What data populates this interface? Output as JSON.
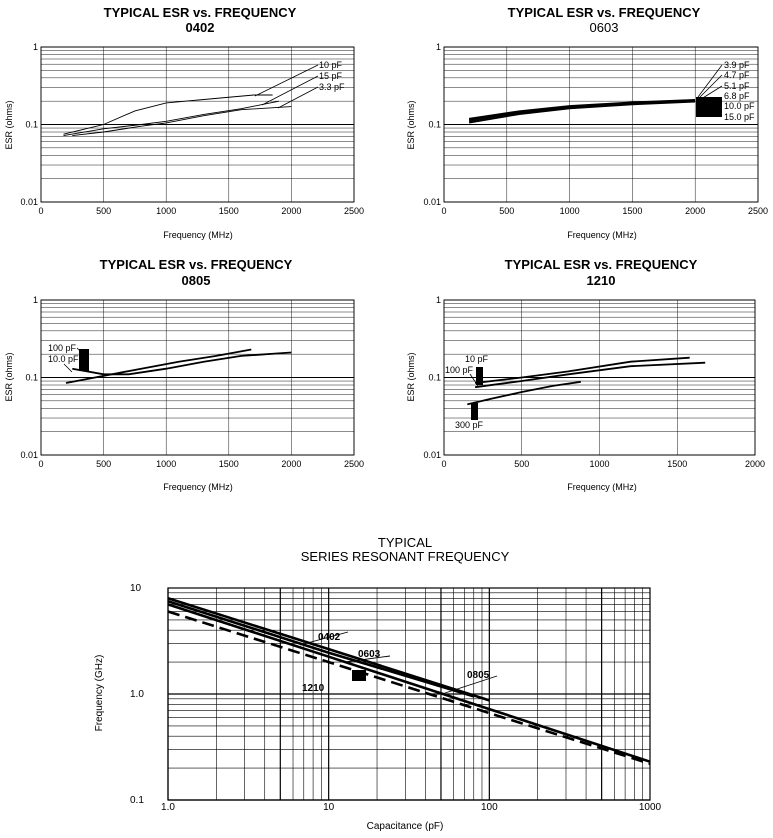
{
  "chart_data": [
    {
      "type": "line",
      "title": "TYPICAL ESR vs. FREQUENCY",
      "subtitle": "0402",
      "xlabel": "Frequency (MHz)",
      "ylabel": "ESR (ohms)",
      "xlim": [
        0,
        2500
      ],
      "ylim": [
        0.01,
        1
      ],
      "y_scale": "log",
      "x_ticks": [
        "0",
        "500",
        "1000",
        "1500",
        "2000",
        "2500"
      ],
      "y_ticks": [
        "1",
        "0.1",
        "0.01"
      ],
      "series": [
        {
          "name": "10 pF",
          "x": [
            180,
            500,
            750,
            1000,
            1300,
            1700,
            1850
          ],
          "y": [
            0.075,
            0.1,
            0.15,
            0.19,
            0.21,
            0.24,
            0.24
          ]
        },
        {
          "name": "15 pF",
          "x": [
            180,
            500,
            800,
            1000,
            1300,
            1600,
            1900
          ],
          "y": [
            0.072,
            0.088,
            0.1,
            0.11,
            0.135,
            0.16,
            0.2
          ]
        },
        {
          "name": "3.3 pF",
          "x": [
            250,
            500,
            800,
            1000,
            1300,
            1600,
            2000
          ],
          "y": [
            0.072,
            0.08,
            0.095,
            0.105,
            0.13,
            0.155,
            0.17
          ]
        }
      ],
      "annotations": [
        "10 pF",
        "15 pF",
        "3.3 pF"
      ]
    },
    {
      "type": "line",
      "title": "TYPICAL ESR vs. FREQUENCY",
      "subtitle": "0603",
      "xlabel": "Frequency (MHz)",
      "ylabel": "ESR (ohms)",
      "xlim": [
        0,
        2500
      ],
      "ylim": [
        0.01,
        1
      ],
      "y_scale": "log",
      "x_ticks": [
        "0",
        "500",
        "1000",
        "1500",
        "2000",
        "2500"
      ],
      "y_ticks": [
        "1",
        "0.1",
        "0.01"
      ],
      "series": [
        {
          "name": "3.9 pF",
          "x": [
            200,
            600,
            1000,
            1500,
            2000
          ],
          "y": [
            0.12,
            0.15,
            0.175,
            0.195,
            0.21
          ]
        },
        {
          "name": "4.7 pF",
          "x": [
            200,
            600,
            1000,
            1500,
            2000
          ],
          "y": [
            0.117,
            0.147,
            0.172,
            0.192,
            0.207
          ]
        },
        {
          "name": "5.1 pF",
          "x": [
            200,
            600,
            1000,
            1500,
            2000
          ],
          "y": [
            0.114,
            0.144,
            0.169,
            0.189,
            0.204
          ]
        },
        {
          "name": "6.8 pF",
          "x": [
            200,
            600,
            1000,
            1500,
            2000
          ],
          "y": [
            0.111,
            0.141,
            0.166,
            0.186,
            0.201
          ]
        },
        {
          "name": "10.0 pF",
          "x": [
            200,
            600,
            1000,
            1500,
            2000
          ],
          "y": [
            0.108,
            0.138,
            0.163,
            0.183,
            0.198
          ]
        },
        {
          "name": "15.0 pF",
          "x": [
            200,
            600,
            1000,
            1500,
            2000
          ],
          "y": [
            0.105,
            0.135,
            0.16,
            0.18,
            0.195
          ]
        }
      ],
      "annotations": [
        "3.9 pF",
        "4.7 pF",
        "5.1 pF",
        "6.8 pF",
        "10.0 pF",
        "15.0 pF"
      ]
    },
    {
      "type": "line",
      "title": "TYPICAL ESR vs. FREQUENCY",
      "subtitle": "0805",
      "xlabel": "Frequency (MHz)",
      "ylabel": "ESR (ohms)",
      "xlim": [
        0,
        2500
      ],
      "ylim": [
        0.01,
        1
      ],
      "y_scale": "log",
      "x_ticks": [
        "0",
        "500",
        "1000",
        "1500",
        "2000",
        "2500"
      ],
      "y_ticks": [
        "1",
        "0.1",
        "0.01"
      ],
      "series": [
        {
          "name": "100 pF",
          "x": [
            200,
            500,
            800,
            1100,
            1400,
            1680
          ],
          "y": [
            0.085,
            0.105,
            0.13,
            0.16,
            0.19,
            0.23
          ]
        },
        {
          "name": "10.0 pF",
          "x": [
            250,
            500,
            700,
            1000,
            1300,
            1600,
            2000
          ],
          "y": [
            0.13,
            0.11,
            0.11,
            0.13,
            0.16,
            0.19,
            0.21
          ]
        }
      ],
      "annotations": [
        "100 pF",
        "10.0 pF"
      ]
    },
    {
      "type": "line",
      "title": "TYPICAL ESR vs. FREQUENCY",
      "subtitle": "1210",
      "xlabel": "Frequency (MHz)",
      "ylabel": "ESR (ohms)",
      "xlim": [
        0,
        2000
      ],
      "ylim": [
        0.01,
        1
      ],
      "y_scale": "log",
      "x_ticks": [
        "0",
        "500",
        "1000",
        "1500",
        "2000"
      ],
      "y_ticks": [
        "1",
        "0.1",
        "0.01"
      ],
      "series": [
        {
          "name": "10 pF",
          "x": [
            200,
            500,
            800,
            1200,
            1580
          ],
          "y": [
            0.085,
            0.1,
            0.12,
            0.16,
            0.18
          ]
        },
        {
          "name": "100 pF",
          "x": [
            200,
            500,
            800,
            1200,
            1680
          ],
          "y": [
            0.075,
            0.09,
            0.11,
            0.14,
            0.155
          ]
        },
        {
          "name": "300 pF",
          "x": [
            150,
            300,
            500,
            700,
            880
          ],
          "y": [
            0.045,
            0.053,
            0.065,
            0.078,
            0.088
          ]
        }
      ],
      "annotations": [
        "10 pF",
        "100 pF",
        "300 pF"
      ]
    },
    {
      "type": "line",
      "title": "TYPICAL",
      "subtitle": "SERIES RESONANT FREQUENCY",
      "xlabel": "Capacitance (pF)",
      "ylabel": "Frequency (GHz)",
      "x_scale": "log",
      "y_scale": "log",
      "xlim": [
        1,
        1000
      ],
      "ylim": [
        0.1,
        10
      ],
      "x_ticks": [
        "1.0",
        "10",
        "100",
        "1000"
      ],
      "y_ticks": [
        "10",
        "1.0",
        "0.1"
      ],
      "series": [
        {
          "name": "0402",
          "x": [
            1,
            10,
            100
          ],
          "y": [
            8.0,
            2.65,
            0.87
          ]
        },
        {
          "name": "0603",
          "x": [
            1,
            10,
            80
          ],
          "y": [
            7.5,
            2.45,
            0.95
          ]
        },
        {
          "name": "0805",
          "x": [
            1,
            10,
            100,
            1000
          ],
          "y": [
            7.0,
            2.25,
            0.72,
            0.23
          ]
        },
        {
          "name": "1210",
          "x": [
            1,
            10,
            100,
            1000
          ],
          "y": [
            6.0,
            2.0,
            0.66,
            0.22
          ]
        }
      ],
      "annotations": [
        "0402",
        "0603",
        "0805",
        "1210"
      ]
    }
  ]
}
